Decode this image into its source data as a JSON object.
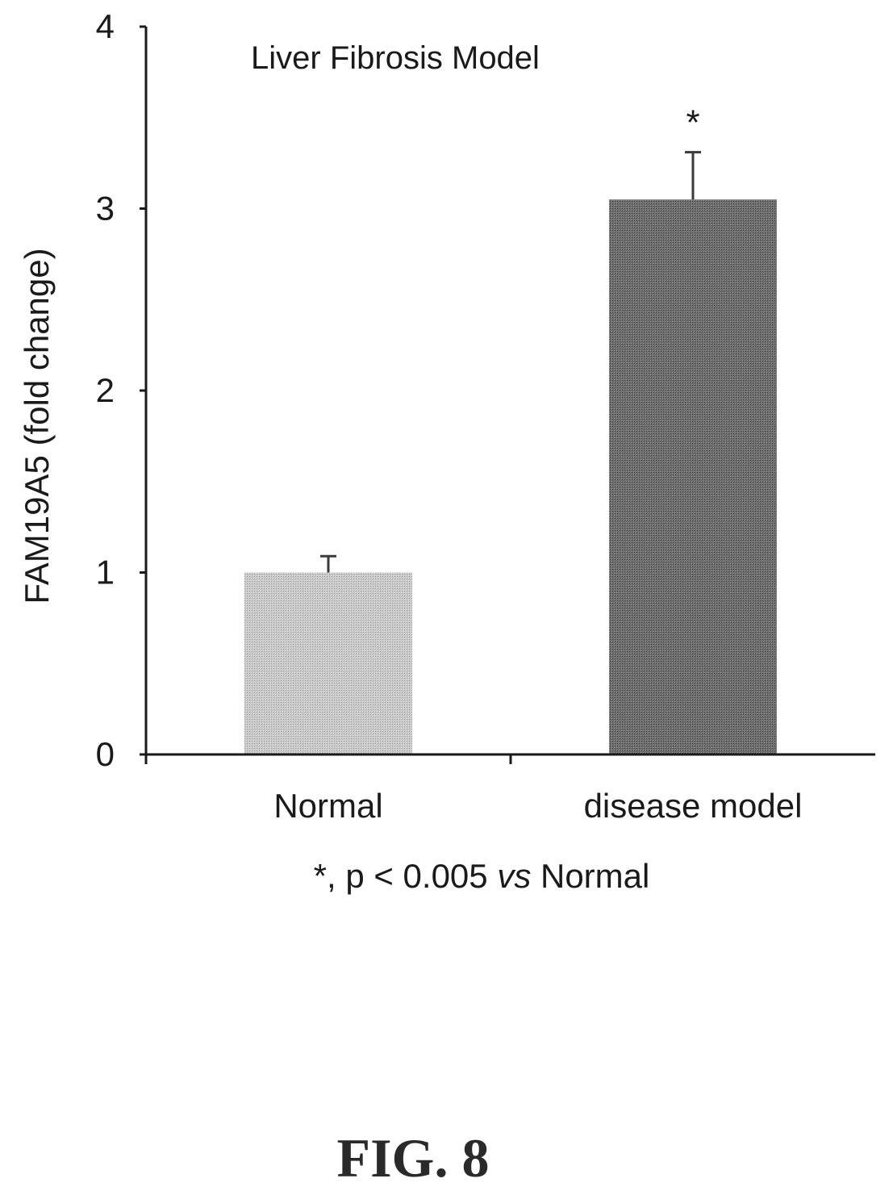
{
  "chart_data": {
    "type": "bar",
    "title": "Liver Fibrosis Model",
    "ylabel": "FAM19A5 (fold change)",
    "xlabel": "",
    "categories": [
      "Normal",
      "disease model"
    ],
    "values": [
      1.0,
      3.05
    ],
    "error": [
      0.09,
      0.26
    ],
    "ylim": [
      0,
      4
    ],
    "yticks": [
      "0",
      "1",
      "2",
      "3",
      "4"
    ],
    "significance": [
      "",
      "*"
    ],
    "bar_colors": [
      "#bdbdbd",
      "#6b6b6b"
    ],
    "grid": false,
    "legend": "none"
  },
  "footnote": {
    "prefix": "*, p < 0.005 ",
    "italic": "vs",
    "suffix": " Normal"
  },
  "figure_label": "FIG. 8"
}
